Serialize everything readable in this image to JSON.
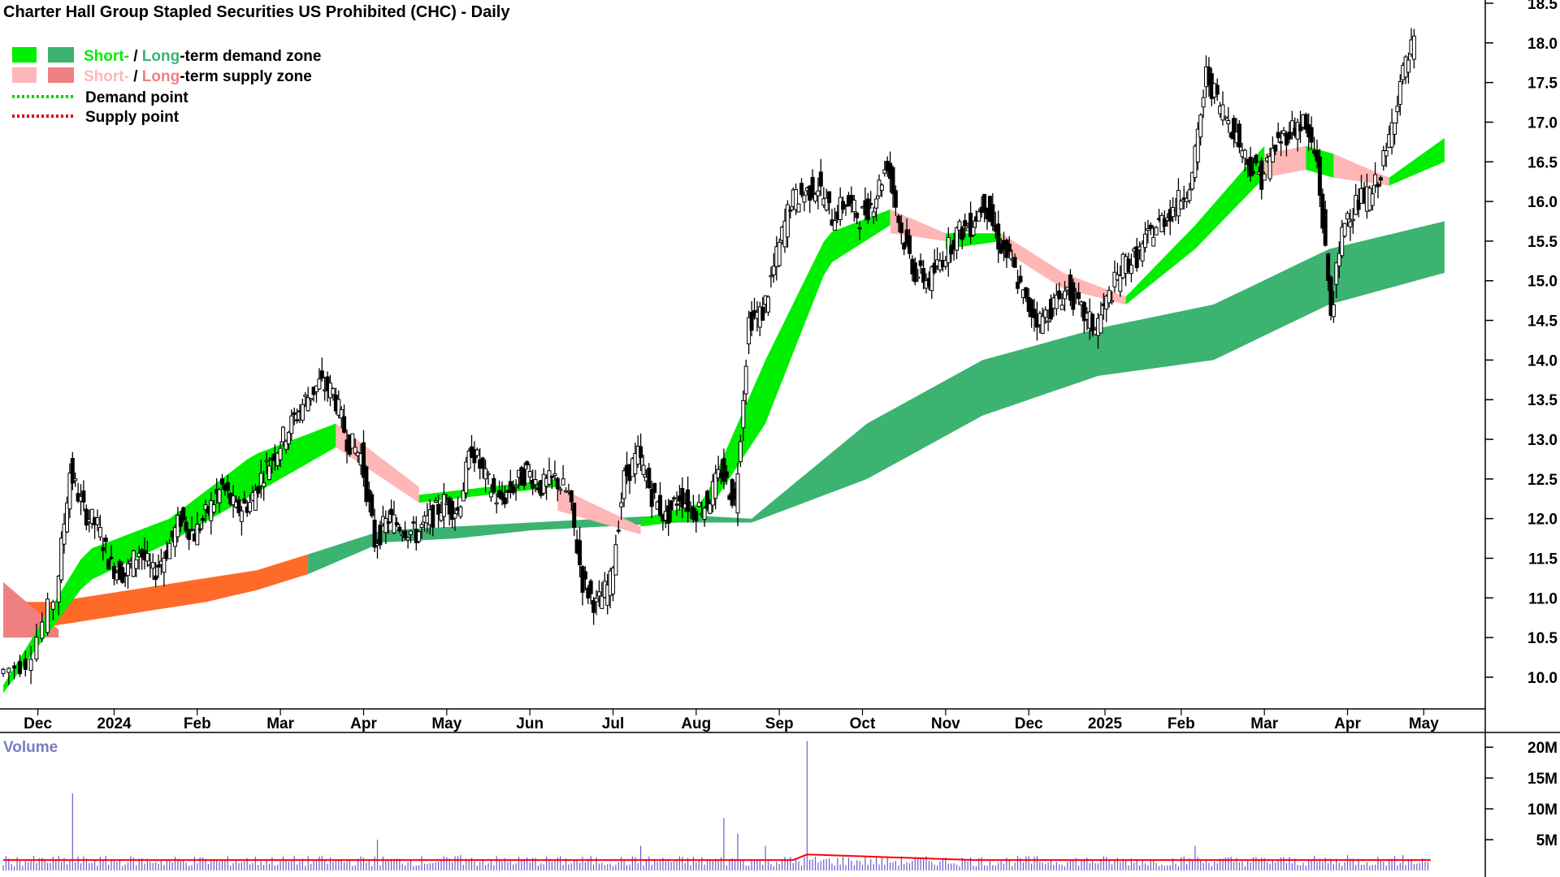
{
  "chart_data": {
    "type": "candlestick",
    "title": "Charter Hall Group Stapled Securities US Prohibited (CHC) - Daily",
    "legend": {
      "placement": "top-left",
      "demand_zone": {
        "short": "Short-",
        "sep": " / ",
        "long": "Long",
        "rest": "-term demand zone"
      },
      "supply_zone": {
        "short": "Short-",
        "sep": " / ",
        "long": "Long",
        "rest": "-term supply zone"
      },
      "demand_point": "Demand point",
      "supply_point": "Supply point"
    },
    "colors": {
      "short_demand": "#00ee00",
      "long_demand": "#3cb371",
      "short_supply": "#ffb6b6",
      "long_supply": "#f08080",
      "short_supply_orange": "#ff6a28",
      "candle": "#000000",
      "volume_bar": "#6a5acd",
      "volume_avg": "#ff0000",
      "volume_label": "#7b7bc8"
    },
    "price_axis": {
      "ylim": [
        9.6,
        18.5
      ],
      "ticks": [
        "10.0",
        "10.5",
        "11.0",
        "11.5",
        "12.0",
        "12.5",
        "13.0",
        "13.5",
        "14.0",
        "14.5",
        "15.0",
        "15.5",
        "16.0",
        "16.5",
        "17.0",
        "17.5",
        "18.0",
        "18.5"
      ]
    },
    "x_axis": {
      "labels": [
        "Dec",
        "2024",
        "Feb",
        "Mar",
        "Apr",
        "May",
        "Jun",
        "Jul",
        "Aug",
        "Sep",
        "Oct",
        "Nov",
        "Dec",
        "2025",
        "Feb",
        "Mar",
        "Apr",
        "May"
      ],
      "label_positions": [
        2.5,
        8,
        14,
        20,
        26,
        32,
        38,
        44,
        50,
        56,
        62,
        68,
        74,
        79.5,
        85,
        91,
        97,
        102.5
      ],
      "xlim": [
        0,
        106
      ]
    },
    "close_points": [
      {
        "t": 0,
        "v": 10.05
      },
      {
        "t": 2,
        "v": 10.2
      },
      {
        "t": 4,
        "v": 11.0
      },
      {
        "t": 5,
        "v": 12.6
      },
      {
        "t": 6,
        "v": 12.1
      },
      {
        "t": 7,
        "v": 11.9
      },
      {
        "t": 8,
        "v": 11.4
      },
      {
        "t": 9,
        "v": 11.3
      },
      {
        "t": 10,
        "v": 11.6
      },
      {
        "t": 11,
        "v": 11.3
      },
      {
        "t": 12,
        "v": 11.6
      },
      {
        "t": 13,
        "v": 12.0
      },
      {
        "t": 14,
        "v": 11.8
      },
      {
        "t": 15,
        "v": 12.1
      },
      {
        "t": 16,
        "v": 12.4
      },
      {
        "t": 17,
        "v": 12.1
      },
      {
        "t": 18,
        "v": 12.2
      },
      {
        "t": 19,
        "v": 12.6
      },
      {
        "t": 20,
        "v": 12.9
      },
      {
        "t": 21,
        "v": 13.2
      },
      {
        "t": 22,
        "v": 13.5
      },
      {
        "t": 23,
        "v": 13.7
      },
      {
        "t": 24,
        "v": 13.6
      },
      {
        "t": 25,
        "v": 13.0
      },
      {
        "t": 26,
        "v": 12.8
      },
      {
        "t": 27,
        "v": 11.7
      },
      {
        "t": 28,
        "v": 12.0
      },
      {
        "t": 29,
        "v": 11.9
      },
      {
        "t": 30,
        "v": 11.8
      },
      {
        "t": 31,
        "v": 12.0
      },
      {
        "t": 32,
        "v": 12.2
      },
      {
        "t": 33,
        "v": 12.1
      },
      {
        "t": 34,
        "v": 12.9
      },
      {
        "t": 35,
        "v": 12.5
      },
      {
        "t": 36,
        "v": 12.2
      },
      {
        "t": 37,
        "v": 12.4
      },
      {
        "t": 38,
        "v": 12.6
      },
      {
        "t": 39,
        "v": 12.4
      },
      {
        "t": 40,
        "v": 12.5
      },
      {
        "t": 41,
        "v": 12.3
      },
      {
        "t": 42,
        "v": 11.2
      },
      {
        "t": 43,
        "v": 10.9
      },
      {
        "t": 44,
        "v": 11.2
      },
      {
        "t": 45,
        "v": 12.5
      },
      {
        "t": 46,
        "v": 12.8
      },
      {
        "t": 47,
        "v": 12.3
      },
      {
        "t": 48,
        "v": 12.0
      },
      {
        "t": 49,
        "v": 12.3
      },
      {
        "t": 50,
        "v": 12.1
      },
      {
        "t": 51,
        "v": 12.2
      },
      {
        "t": 52,
        "v": 12.6
      },
      {
        "t": 53,
        "v": 12.2
      },
      {
        "t": 54,
        "v": 14.5
      },
      {
        "t": 55,
        "v": 14.6
      },
      {
        "t": 56,
        "v": 15.3
      },
      {
        "t": 57,
        "v": 16.0
      },
      {
        "t": 58,
        "v": 16.1
      },
      {
        "t": 59,
        "v": 16.2
      },
      {
        "t": 60,
        "v": 15.8
      },
      {
        "t": 61,
        "v": 16.0
      },
      {
        "t": 62,
        "v": 15.8
      },
      {
        "t": 63,
        "v": 16.0
      },
      {
        "t": 64,
        "v": 16.5
      },
      {
        "t": 65,
        "v": 15.6
      },
      {
        "t": 66,
        "v": 15.1
      },
      {
        "t": 67,
        "v": 15.0
      },
      {
        "t": 68,
        "v": 15.3
      },
      {
        "t": 69,
        "v": 15.6
      },
      {
        "t": 70,
        "v": 15.7
      },
      {
        "t": 71,
        "v": 16.0
      },
      {
        "t": 72,
        "v": 15.5
      },
      {
        "t": 73,
        "v": 15.2
      },
      {
        "t": 74,
        "v": 14.7
      },
      {
        "t": 75,
        "v": 14.5
      },
      {
        "t": 76,
        "v": 14.7
      },
      {
        "t": 77,
        "v": 14.9
      },
      {
        "t": 78,
        "v": 14.6
      },
      {
        "t": 79,
        "v": 14.4
      },
      {
        "t": 80,
        "v": 14.8
      },
      {
        "t": 81,
        "v": 15.2
      },
      {
        "t": 82,
        "v": 15.3
      },
      {
        "t": 83,
        "v": 15.6
      },
      {
        "t": 84,
        "v": 15.8
      },
      {
        "t": 85,
        "v": 16.0
      },
      {
        "t": 86,
        "v": 16.3
      },
      {
        "t": 87,
        "v": 17.6
      },
      {
        "t": 88,
        "v": 17.2
      },
      {
        "t": 89,
        "v": 16.9
      },
      {
        "t": 90,
        "v": 16.5
      },
      {
        "t": 91,
        "v": 16.3
      },
      {
        "t": 92,
        "v": 16.7
      },
      {
        "t": 93,
        "v": 16.9
      },
      {
        "t": 94,
        "v": 17.0
      },
      {
        "t": 95,
        "v": 16.5
      },
      {
        "t": 96,
        "v": 14.6
      },
      {
        "t": 97,
        "v": 15.8
      },
      {
        "t": 98,
        "v": 16.0
      },
      {
        "t": 99,
        "v": 16.1
      },
      {
        "t": 100,
        "v": 16.6
      },
      {
        "t": 101,
        "v": 17.5
      },
      {
        "t": 102,
        "v": 18.0
      }
    ],
    "zones": {
      "long_term": {
        "segments": [
          {
            "type": "supply",
            "t0": 0,
            "t1": 22,
            "upper": [
              10.95,
              10.95,
              11.05,
              11.15,
              11.25,
              11.35,
              11.55
            ],
            "lower": [
              10.55,
              10.65,
              10.75,
              10.85,
              10.95,
              11.1,
              11.3
            ]
          },
          {
            "type": "demand",
            "t0": 22,
            "t1": 54,
            "upper": [
              11.55,
              11.85,
              11.9,
              11.95,
              12.0,
              12.05,
              12.0
            ],
            "lower": [
              11.3,
              11.7,
              11.75,
              11.85,
              11.9,
              11.95,
              11.95
            ]
          },
          {
            "type": "demand",
            "t0": 54,
            "t1": 104,
            "upper": [
              12.0,
              13.2,
              14.0,
              14.4,
              14.7,
              15.4,
              15.75
            ],
            "lower": [
              11.95,
              12.5,
              13.3,
              13.8,
              14.0,
              14.7,
              15.1
            ]
          }
        ]
      },
      "short_term": {
        "segments": [
          {
            "type": "supply",
            "t0": 0,
            "t1": 4,
            "upper": [
              11.2,
              10.6
            ],
            "lower": [
              10.5,
              10.5
            ]
          },
          {
            "type": "demand",
            "t0": 0,
            "t1": 24,
            "upper": [
              9.9,
              11.6,
              12.0,
              12.8,
              13.2
            ],
            "lower": [
              9.8,
              11.2,
              11.7,
              12.3,
              12.9
            ]
          },
          {
            "type": "supply",
            "t0": 24,
            "t1": 30,
            "upper": [
              13.2,
              12.4
            ],
            "lower": [
              12.9,
              12.2
            ]
          },
          {
            "type": "demand",
            "t0": 30,
            "t1": 40,
            "upper": [
              12.3,
              12.5
            ],
            "lower": [
              12.2,
              12.4
            ]
          },
          {
            "type": "supply",
            "t0": 40,
            "t1": 46,
            "upper": [
              12.4,
              11.9
            ],
            "lower": [
              12.1,
              11.8
            ]
          },
          {
            "type": "demand",
            "t0": 46,
            "t1": 64,
            "upper": [
              12.0,
              12.2,
              14.0,
              15.6,
              15.9
            ],
            "lower": [
              11.9,
              12.0,
              13.2,
              15.2,
              15.7
            ]
          },
          {
            "type": "supply",
            "t0": 64,
            "t1": 68,
            "upper": [
              15.9,
              15.6
            ],
            "lower": [
              15.6,
              15.5
            ]
          },
          {
            "type": "demand",
            "t0": 68,
            "t1": 72,
            "upper": [
              15.6,
              15.6
            ],
            "lower": [
              15.4,
              15.5
            ]
          },
          {
            "type": "supply",
            "t0": 72,
            "t1": 81,
            "upper": [
              15.6,
              15.1,
              14.8
            ],
            "lower": [
              15.4,
              14.9,
              14.7
            ]
          },
          {
            "type": "demand",
            "t0": 81,
            "t1": 91,
            "upper": [
              14.8,
              15.7,
              16.7
            ],
            "lower": [
              14.7,
              15.4,
              16.3
            ]
          },
          {
            "type": "supply",
            "t0": 91,
            "t1": 94,
            "upper": [
              16.6,
              16.7
            ],
            "lower": [
              16.3,
              16.4
            ]
          },
          {
            "type": "demand",
            "t0": 94,
            "t1": 96,
            "upper": [
              16.7,
              16.6
            ],
            "lower": [
              16.4,
              16.3
            ]
          },
          {
            "type": "supply",
            "t0": 96,
            "t1": 100,
            "upper": [
              16.6,
              16.3
            ],
            "lower": [
              16.3,
              16.2
            ]
          },
          {
            "type": "demand",
            "t0": 100,
            "t1": 104,
            "upper": [
              16.3,
              16.8
            ],
            "lower": [
              16.2,
              16.5
            ]
          }
        ]
      }
    },
    "volume": {
      "label": "Volume",
      "ticks": [
        "5M",
        "10M",
        "15M",
        "20M"
      ],
      "ylim": [
        0,
        22
      ],
      "spikes": [
        {
          "t": 5,
          "v": 12.5
        },
        {
          "t": 27,
          "v": 5
        },
        {
          "t": 33,
          "v": 2.5
        },
        {
          "t": 46,
          "v": 4
        },
        {
          "t": 52,
          "v": 8.5
        },
        {
          "t": 53,
          "v": 6
        },
        {
          "t": 55,
          "v": 4
        },
        {
          "t": 58,
          "v": 21
        },
        {
          "t": 86,
          "v": 4
        },
        {
          "t": 97,
          "v": 2.5
        },
        {
          "t": 101,
          "v": 2.5
        }
      ],
      "base_avg": 1.7
    }
  }
}
